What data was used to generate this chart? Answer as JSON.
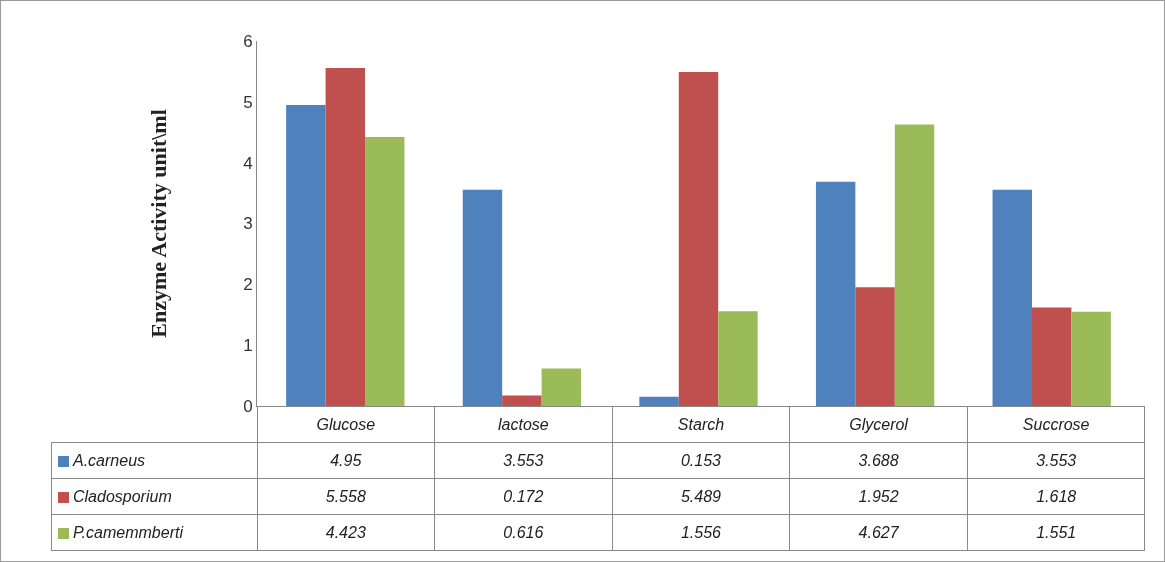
{
  "chart_data": {
    "type": "bar",
    "ylabel": "Enzyme Activity unit\\ml",
    "categories": [
      "Glucose",
      "lactose",
      "Starch",
      "Glycerol",
      "Succrose"
    ],
    "series": [
      {
        "name": "A.carneus",
        "color": "#4f81bd",
        "values": [
          4.95,
          3.553,
          0.153,
          3.688,
          3.553
        ]
      },
      {
        "name": "Cladosporium",
        "color": "#c0504d",
        "values": [
          5.558,
          0.172,
          5.489,
          1.952,
          1.618
        ]
      },
      {
        "name": "P.camemmberti",
        "color": "#9bbb59",
        "values": [
          4.423,
          0.616,
          1.556,
          4.627,
          1.551
        ]
      }
    ],
    "ylim": [
      0,
      6
    ],
    "yticks": [
      0,
      1,
      2,
      3,
      4,
      5,
      6
    ],
    "grid": false,
    "data_labels": true,
    "legend": "bottom"
  }
}
